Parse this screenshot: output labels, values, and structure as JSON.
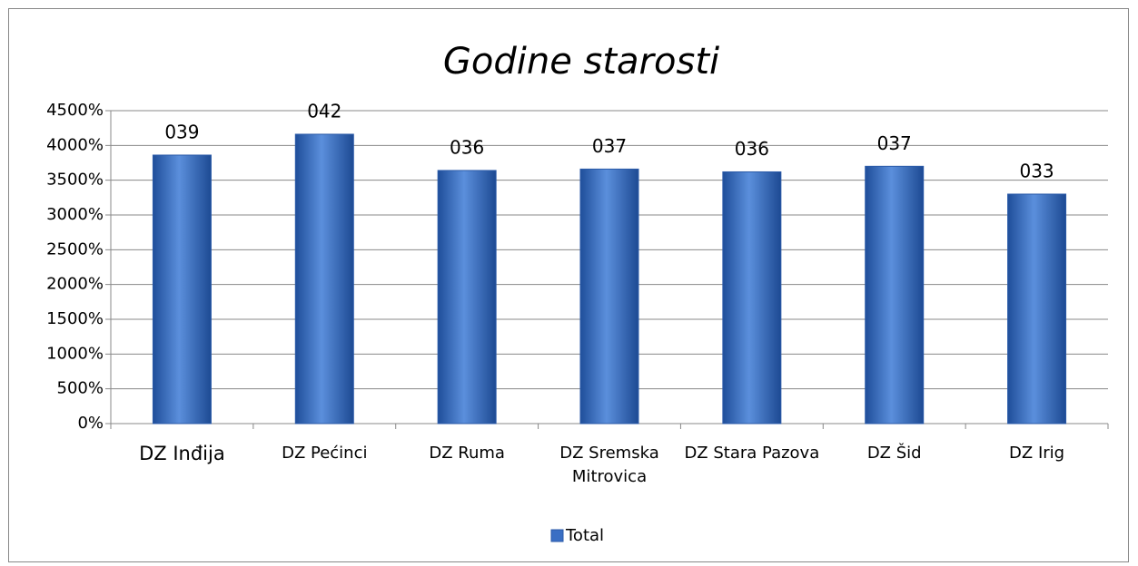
{
  "chart_data": {
    "type": "bar",
    "title": "Godine starosti",
    "categories": [
      "DZ Inđija",
      "DZ Pećinci",
      "DZ Ruma",
      "DZ Sremska Mitrovica",
      "DZ Stara Pazova",
      "DZ Šid",
      "DZ Irig"
    ],
    "series": [
      {
        "name": "Total",
        "color": "#3a6fc4",
        "values": [
          3861,
          4161,
          3640,
          3660,
          3620,
          3700,
          3300
        ],
        "value_labels": [
          "039",
          "042",
          "036",
          "037",
          "036",
          "037",
          "033"
        ]
      }
    ],
    "ylim": [
      0,
      4500
    ],
    "yticks": [
      {
        "value": 0,
        "label": "0%"
      },
      {
        "value": 500,
        "label": "500%"
      },
      {
        "value": 1000,
        "label": "1000%"
      },
      {
        "value": 1500,
        "label": "1500%"
      },
      {
        "value": 2000,
        "label": "2000%"
      },
      {
        "value": 2500,
        "label": "2500%"
      },
      {
        "value": 3000,
        "label": "3000%"
      },
      {
        "value": 3500,
        "label": "3500%"
      },
      {
        "value": 4000,
        "label": "4000%"
      },
      {
        "value": 4500,
        "label": "4500%"
      }
    ],
    "grid": true,
    "legend": "bottom"
  }
}
